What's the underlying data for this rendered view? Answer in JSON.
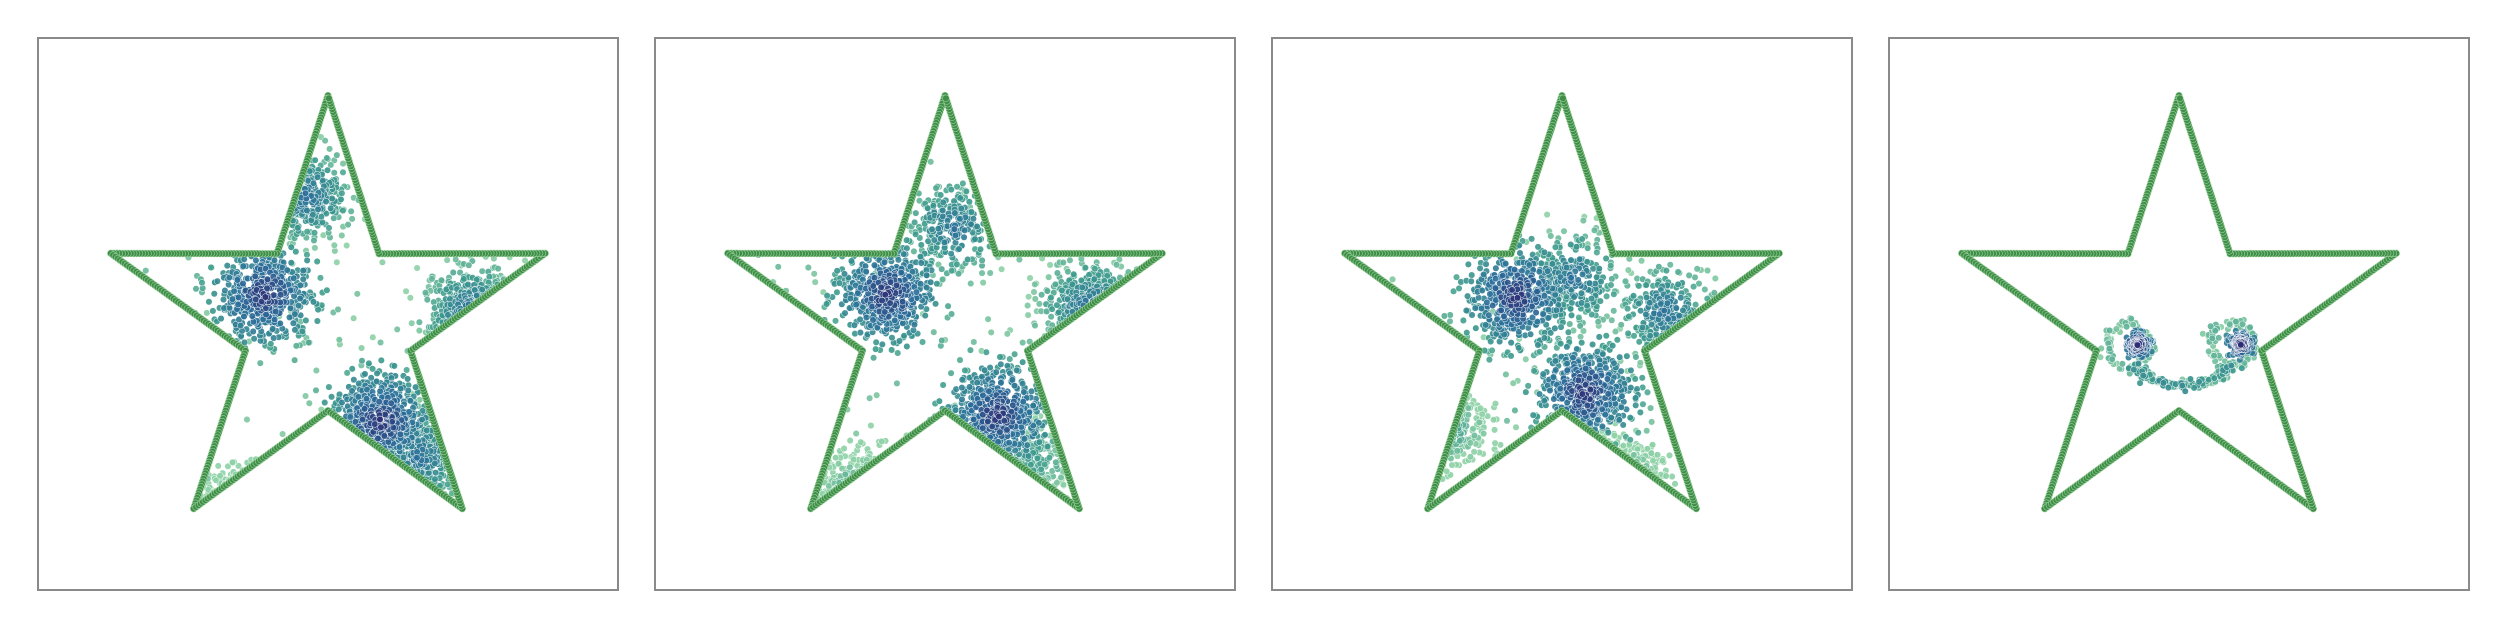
{
  "chart_data": [
    {
      "type": "scatter",
      "panel": 1,
      "title": "",
      "xlabel": "",
      "ylabel": "",
      "grid": false,
      "legend": "none",
      "xlim": [
        -1.5,
        1.5
      ],
      "ylim": [
        -1.5,
        1.5
      ],
      "outline": {
        "shape": "five-pointed star",
        "color": "#3e8e48",
        "outer_radius": 1.0,
        "inner_radius": 0.38
      },
      "cluster_centers": [
        {
          "x": -0.28,
          "y": 0.13,
          "density": "high"
        },
        {
          "x": 0.23,
          "y": -0.43,
          "density": "high"
        },
        {
          "x": -0.1,
          "y": 0.56,
          "density": "medium"
        },
        {
          "x": 0.63,
          "y": 0.05,
          "density": "medium"
        },
        {
          "x": -0.38,
          "y": -0.83,
          "density": "low"
        },
        {
          "x": 0.4,
          "y": -0.58,
          "density": "medium"
        }
      ],
      "colormap": [
        "#2b1e6b",
        "#2a6e9a",
        "#3c9a8c",
        "#8ed1a6"
      ]
    },
    {
      "type": "scatter",
      "panel": 2,
      "title": "",
      "xlabel": "",
      "ylabel": "",
      "grid": false,
      "legend": "none",
      "xlim": [
        -1.5,
        1.5
      ],
      "ylim": [
        -1.5,
        1.5
      ],
      "outline": {
        "shape": "five-pointed star",
        "color": "#3e8e48",
        "outer_radius": 1.0,
        "inner_radius": 0.38
      },
      "cluster_centers": [
        {
          "x": -0.25,
          "y": 0.13,
          "density": "high"
        },
        {
          "x": 0.23,
          "y": -0.4,
          "density": "high"
        },
        {
          "x": 0.04,
          "y": 0.42,
          "density": "medium"
        },
        {
          "x": 0.63,
          "y": 0.07,
          "density": "medium"
        },
        {
          "x": -0.38,
          "y": -0.75,
          "density": "low"
        },
        {
          "x": 0.4,
          "y": -0.6,
          "density": "low"
        }
      ],
      "colormap": [
        "#2b1e6b",
        "#2a6e9a",
        "#3c9a8c",
        "#8ed1a6"
      ]
    },
    {
      "type": "scatter",
      "panel": 3,
      "title": "",
      "xlabel": "",
      "ylabel": "",
      "grid": false,
      "legend": "none",
      "xlim": [
        -1.5,
        1.5
      ],
      "ylim": [
        -1.5,
        1.5
      ],
      "outline": {
        "shape": "five-pointed star",
        "color": "#3e8e48",
        "outer_radius": 1.0,
        "inner_radius": 0.38
      },
      "cluster_centers": [
        {
          "x": -0.2,
          "y": 0.12,
          "density": "high"
        },
        {
          "x": 0.1,
          "y": -0.3,
          "density": "high"
        },
        {
          "x": 0.45,
          "y": 0.05,
          "density": "medium"
        },
        {
          "x": 0.05,
          "y": 0.2,
          "density": "medium"
        },
        {
          "x": -0.5,
          "y": -0.45,
          "density": "low"
        },
        {
          "x": 0.25,
          "y": -0.7,
          "density": "low"
        }
      ],
      "colormap": [
        "#2b1e6b",
        "#2a6e9a",
        "#3c9a8c",
        "#8ed1a6"
      ]
    },
    {
      "type": "scatter",
      "panel": 4,
      "title": "",
      "xlabel": "",
      "ylabel": "",
      "grid": false,
      "legend": "none",
      "xlim": [
        -1.5,
        1.5
      ],
      "ylim": [
        -1.5,
        1.5
      ],
      "outline": {
        "shape": "five-pointed star",
        "color": "#3e8e48",
        "outer_radius": 1.0,
        "inner_radius": 0.38
      },
      "features": [
        {
          "kind": "eye-ring",
          "x": -0.22,
          "y": -0.09,
          "radius": 0.095
        },
        {
          "kind": "eye-core",
          "x": -0.18,
          "y": -0.09,
          "radius": 0.05
        },
        {
          "kind": "eye-ring",
          "x": 0.23,
          "y": -0.09,
          "radius": 0.095
        },
        {
          "kind": "eye-core",
          "x": 0.27,
          "y": -0.09,
          "radius": 0.05
        },
        {
          "kind": "smile-arc",
          "x": 0.02,
          "y": -0.38,
          "radius": 0.23
        }
      ],
      "colormap": [
        "#2b1e6b",
        "#2a6e9a",
        "#3c9a8c",
        "#8ed1a6"
      ]
    }
  ]
}
